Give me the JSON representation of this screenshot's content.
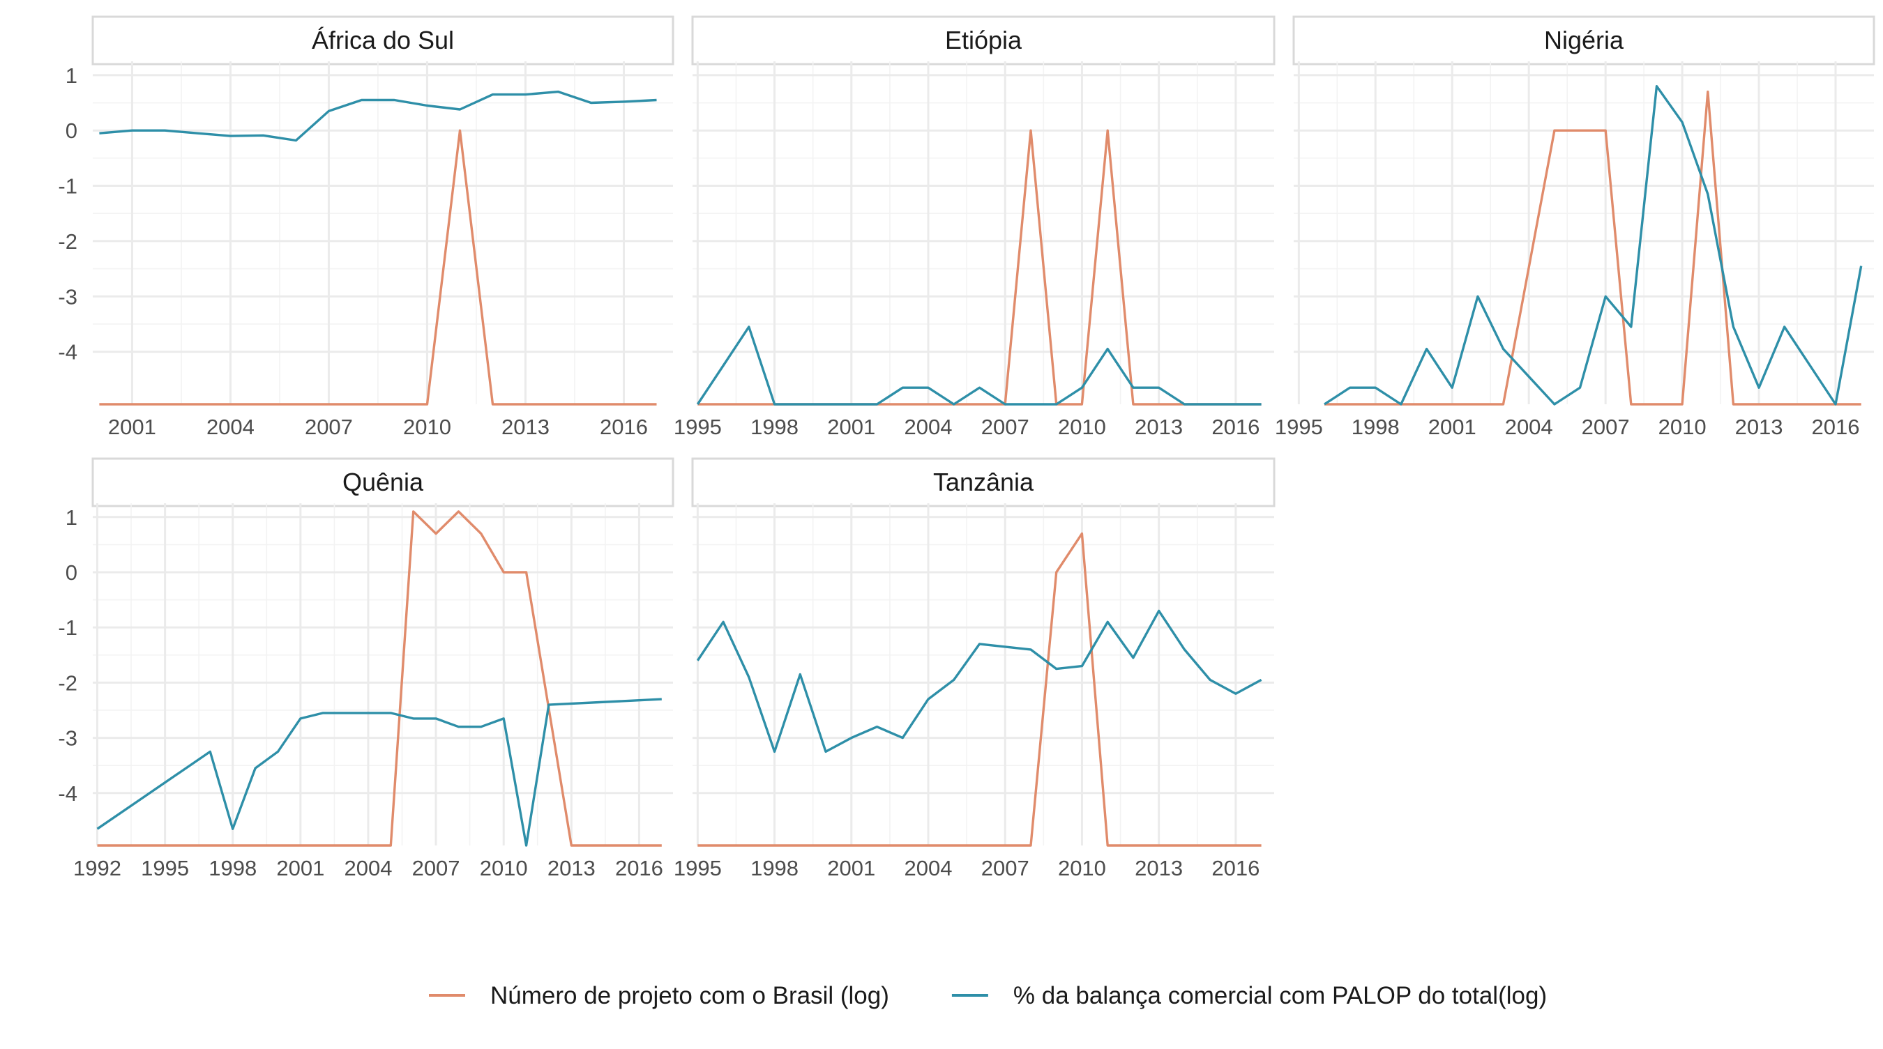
{
  "chart_data": {
    "type": "line",
    "facet_order": [
      "África do Sul",
      "Etiópia",
      "Nigéria",
      "Quênia",
      "Tanzânia"
    ],
    "y_ticks": [
      1,
      0,
      -1,
      -2,
      -3,
      -4
    ],
    "ylim": [
      -4.95,
      1.25
    ],
    "legend_position": "bottom",
    "grid": true,
    "series_meta": [
      {
        "key": "projetos",
        "name": "Número de projeto com o Brasil (log)",
        "color": "#e08b6b"
      },
      {
        "key": "balanca",
        "name": "% da balança comercial com PALOP do total(log)",
        "color": "#2e8fa8"
      }
    ],
    "facets": [
      {
        "title": "África do Sul",
        "xlim": [
          1999.8,
          2017.5
        ],
        "x_ticks": [
          2001,
          2004,
          2007,
          2010,
          2013,
          2016
        ],
        "series": {
          "projetos": {
            "x": [
              2000,
              2010,
              2011,
              2012,
              2017
            ],
            "y": [
              -4.95,
              -4.95,
              0,
              -4.95,
              -4.95
            ]
          },
          "balanca": {
            "x": [
              2000,
              2001,
              2002,
              2003,
              2004,
              2005,
              2006,
              2007,
              2008,
              2009,
              2010,
              2011,
              2012,
              2013,
              2014,
              2015,
              2016,
              2017
            ],
            "y": [
              -0.05,
              0.0,
              0.0,
              -0.05,
              -0.1,
              -0.09,
              -0.18,
              0.35,
              0.55,
              0.55,
              0.45,
              0.38,
              0.65,
              0.65,
              0.7,
              0.5,
              0.52,
              0.55
            ]
          }
        }
      },
      {
        "title": "Etiópia",
        "xlim": [
          1994.8,
          2017.5
        ],
        "x_ticks": [
          1995,
          1998,
          2001,
          2004,
          2007,
          2010,
          2013,
          2016
        ],
        "series": {
          "projetos": {
            "x": [
              1995,
              2007,
              2008,
              2009,
              2010,
              2011,
              2012,
              2017
            ],
            "y": [
              -4.95,
              -4.95,
              0,
              -4.95,
              -4.95,
              0,
              -4.95,
              -4.95
            ]
          },
          "balanca": {
            "x": [
              1995,
              1996,
              1997,
              1998,
              1999,
              2000,
              2001,
              2002,
              2003,
              2004,
              2005,
              2006,
              2007,
              2008,
              2009,
              2010,
              2011,
              2012,
              2013,
              2014,
              2015,
              2016,
              2017
            ],
            "y": [
              -4.95,
              -4.25,
              -3.55,
              -4.95,
              -4.95,
              -4.95,
              -4.95,
              -4.95,
              -4.65,
              -4.65,
              -4.95,
              -4.65,
              -4.95,
              -4.95,
              -4.95,
              -4.65,
              -3.95,
              -4.65,
              -4.65,
              -4.95,
              -4.95,
              -4.95,
              -4.95
            ]
          }
        }
      },
      {
        "title": "Nigéria",
        "xlim": [
          1994.8,
          2017.5
        ],
        "x_ticks": [
          1995,
          1998,
          2001,
          2004,
          2007,
          2010,
          2013,
          2016
        ],
        "series": {
          "projetos": {
            "x": [
              1996,
              2003,
              2005,
              2006,
              2007,
              2008,
              2009,
              2010,
              2011,
              2012,
              2017
            ],
            "y": [
              -4.95,
              -4.95,
              0,
              0,
              0,
              -4.95,
              -4.95,
              -4.95,
              0.7,
              -4.95,
              -4.95
            ]
          },
          "balanca": {
            "x": [
              1996,
              1997,
              1998,
              1999,
              2000,
              2001,
              2002,
              2003,
              2004,
              2005,
              2006,
              2007,
              2008,
              2009,
              2010,
              2011,
              2012,
              2013,
              2014,
              2015,
              2016,
              2017
            ],
            "y": [
              -4.95,
              -4.65,
              -4.65,
              -4.95,
              -3.95,
              -4.65,
              -3.0,
              -3.95,
              -4.45,
              -4.95,
              -4.65,
              -3.0,
              -3.55,
              0.8,
              0.15,
              -1.15,
              -3.55,
              -4.65,
              -3.55,
              -4.25,
              -4.95,
              -2.45
            ]
          }
        }
      },
      {
        "title": "Quênia",
        "xlim": [
          1991.8,
          2017.5
        ],
        "x_ticks": [
          1992,
          1995,
          1998,
          2001,
          2004,
          2007,
          2010,
          2013,
          2016
        ],
        "series": {
          "projetos": {
            "x": [
              1992,
              2005,
              2006,
              2007,
              2008,
              2009,
              2010,
              2011,
              2013,
              2017
            ],
            "y": [
              -4.95,
              -4.95,
              1.1,
              0.7,
              1.1,
              0.7,
              0,
              0,
              -4.95,
              -4.95
            ]
          },
          "balanca": {
            "x": [
              1992,
              1997,
              1998,
              1999,
              2000,
              2001,
              2002,
              2003,
              2004,
              2005,
              2006,
              2007,
              2008,
              2009,
              2010,
              2011,
              2012,
              2017
            ],
            "y": [
              -4.65,
              -3.25,
              -4.65,
              -3.55,
              -3.25,
              -2.65,
              -2.55,
              -2.55,
              -2.55,
              -2.55,
              -2.65,
              -2.65,
              -2.8,
              -2.8,
              -2.65,
              -4.95,
              -2.4,
              -2.3
            ]
          }
        }
      },
      {
        "title": "Tanzânia",
        "xlim": [
          1994.8,
          2017.5
        ],
        "x_ticks": [
          1995,
          1998,
          2001,
          2004,
          2007,
          2010,
          2013,
          2016
        ],
        "series": {
          "projetos": {
            "x": [
              1995,
              2008,
              2009,
              2010,
              2011,
              2017
            ],
            "y": [
              -4.95,
              -4.95,
              0,
              0.7,
              -4.95,
              -4.95
            ]
          },
          "balanca": {
            "x": [
              1995,
              1996,
              1997,
              1998,
              1999,
              2000,
              2001,
              2002,
              2003,
              2004,
              2005,
              2006,
              2007,
              2008,
              2009,
              2010,
              2011,
              2012,
              2013,
              2014,
              2015,
              2016,
              2017
            ],
            "y": [
              -1.6,
              -0.9,
              -1.9,
              -3.25,
              -1.85,
              -3.25,
              -3.0,
              -2.8,
              -3.0,
              -2.3,
              -1.95,
              -1.3,
              -1.35,
              -1.4,
              -1.75,
              -1.7,
              -0.9,
              -1.55,
              -0.7,
              -1.4,
              -1.95,
              -2.2,
              -1.95
            ]
          }
        }
      }
    ]
  }
}
